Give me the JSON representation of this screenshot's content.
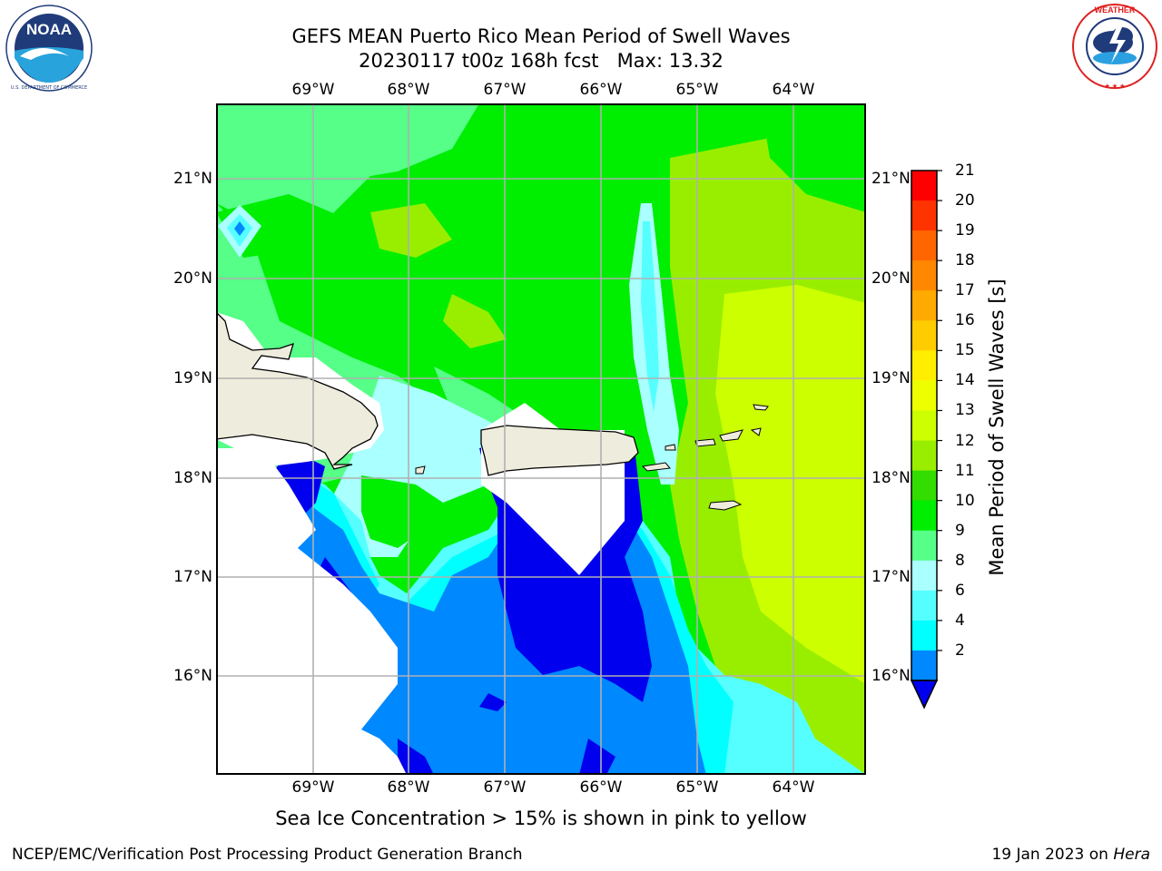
{
  "title_line1": "GEFS MEAN Puerto Rico Mean Period of Swell Waves",
  "title_line2": "20230117 t00z 168h fcst   Max: 13.32",
  "caption": "Sea Ice Concentration > 15% is shown in pink to yellow",
  "footer_left": "NCEP/EMC/Verification Post Processing Product Generation Branch",
  "footer_right_prefix": "19 Jan 2023 on ",
  "footer_right_host": "Hera",
  "logos": {
    "left": {
      "name": "NOAA",
      "text": "NOAA",
      "ring_text": "NATIONAL OCEANIC AND ATMOSPHERIC ADMINISTRATION · U.S. DEPARTMENT OF COMMERCE"
    },
    "right": {
      "name": "National Weather Service",
      "ring_text": "NATIONAL WEATHER SERVICE"
    }
  },
  "map": {
    "lon_labels": [
      "69°W",
      "68°W",
      "67°W",
      "66°W",
      "65°W",
      "64°W"
    ],
    "lat_labels": [
      "21°N",
      "20°N",
      "19°N",
      "18°N",
      "17°N",
      "16°N"
    ],
    "land_color": "#eeecdc",
    "grid_color": "#b0b0b0",
    "nodata_color": "#ffffff"
  },
  "colorbar": {
    "title": "Mean Period of Swell Waves [s]",
    "labels": [
      "21",
      "20",
      "19",
      "18",
      "17",
      "16",
      "15",
      "14",
      "13",
      "12",
      "11",
      "10",
      "9",
      "8",
      "6",
      "4",
      "2"
    ],
    "extend": "min",
    "colors_top_to_bottom": [
      "#ff0000",
      "#ff3300",
      "#ff6600",
      "#ff8800",
      "#ffaa00",
      "#ffcc00",
      "#ffee00",
      "#eeff00",
      "#ccff00",
      "#99ee00",
      "#33dd00",
      "#00ee00",
      "#55ff88",
      "#aaffff",
      "#55ffff",
      "#00ffff",
      "#0088ff"
    ],
    "extend_color": "#0000ee"
  }
}
